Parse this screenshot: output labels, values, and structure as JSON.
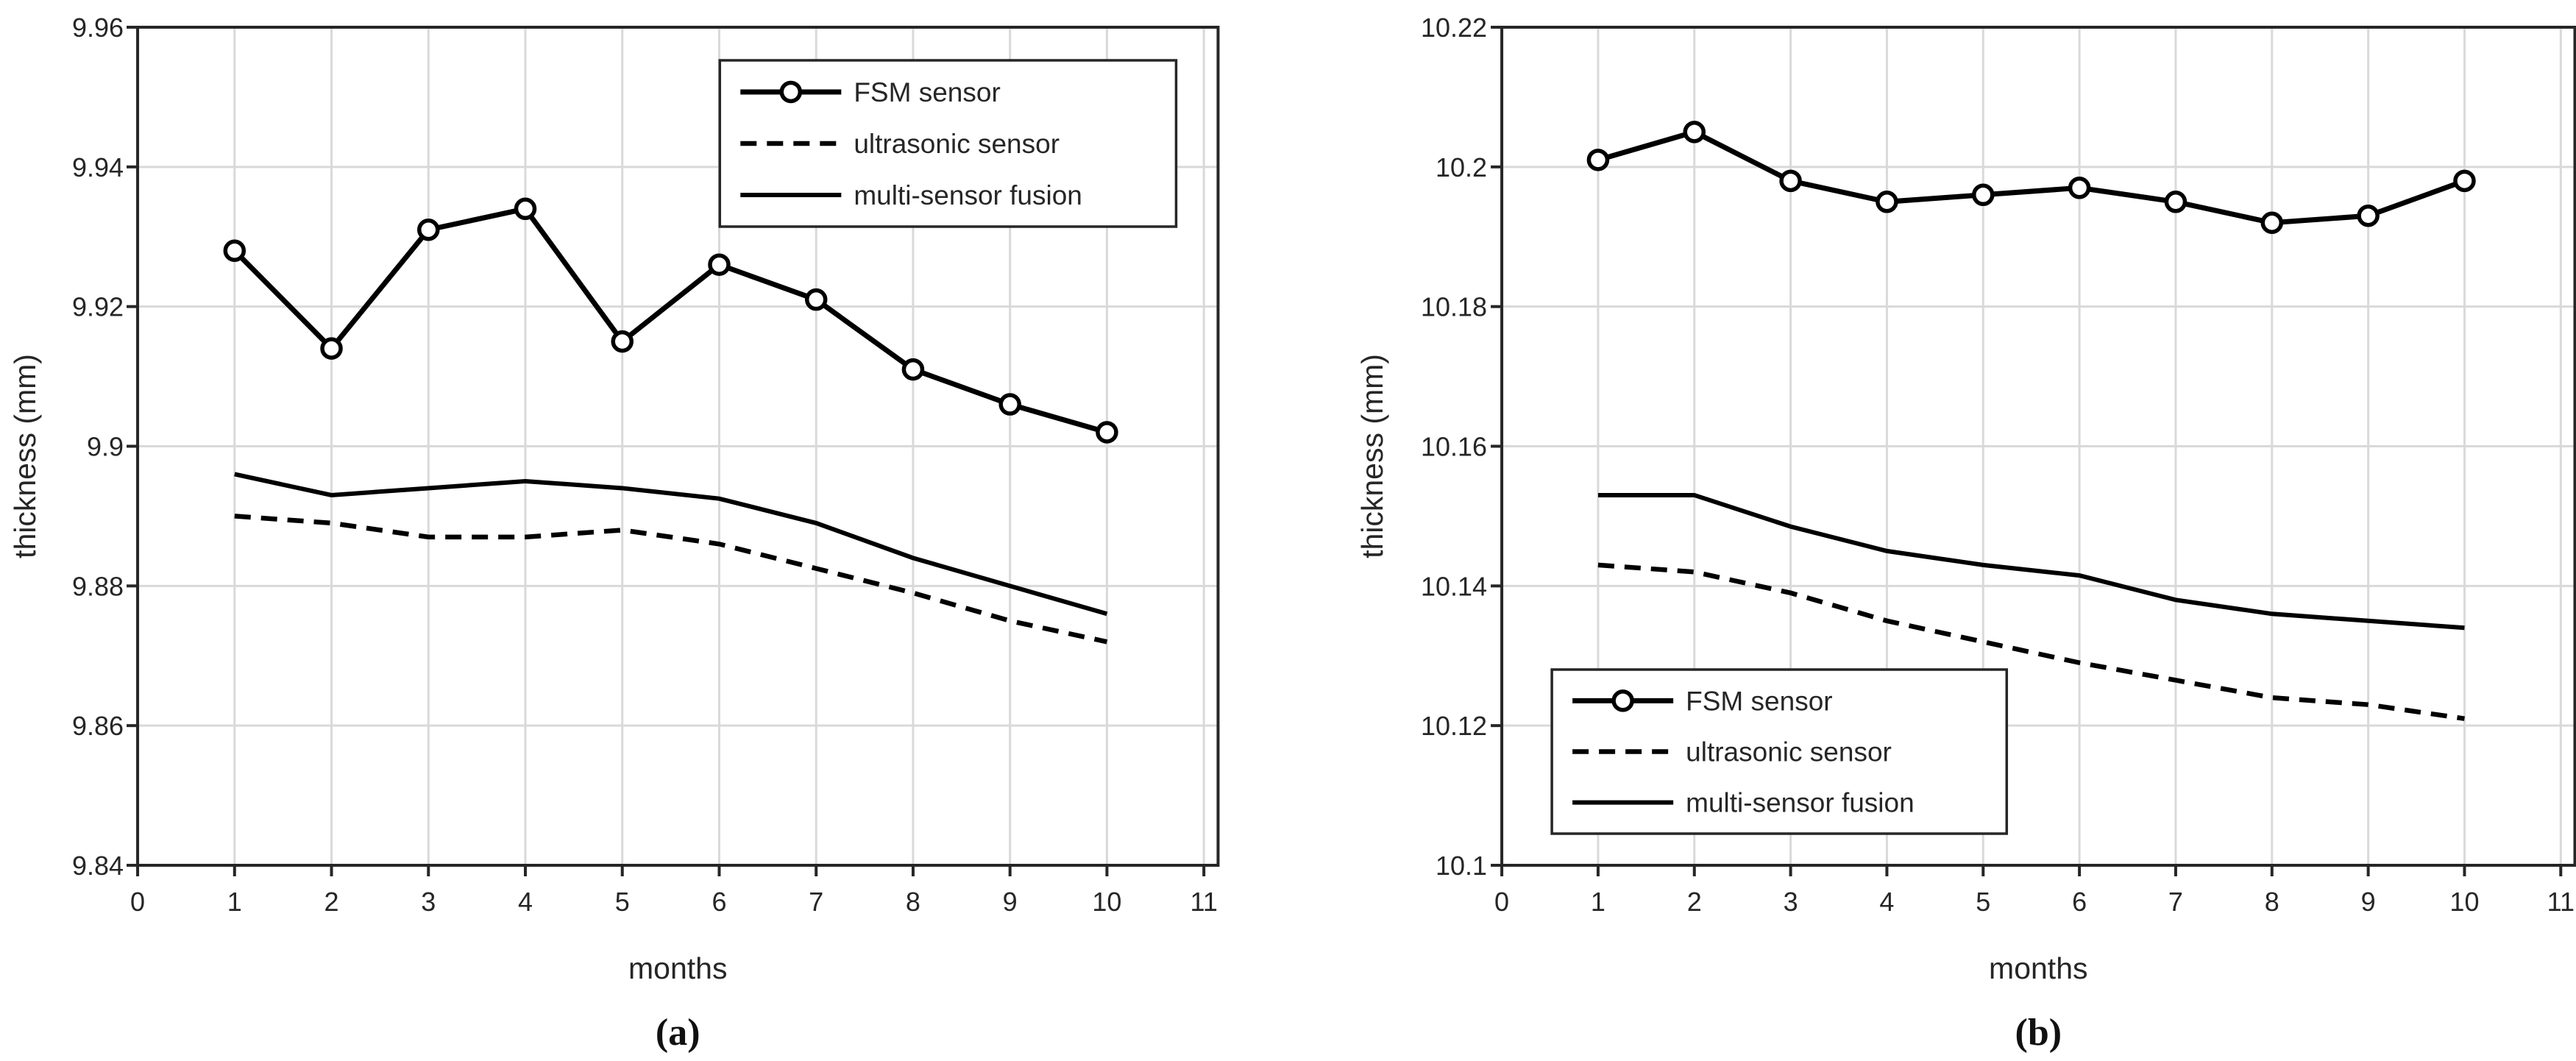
{
  "figure": {
    "background_color": "#ffffff",
    "line_color": "#000000",
    "grid_color": "#d9d9d9",
    "spine_color": "#262626",
    "text_color": "#262626"
  },
  "chart_data": [
    {
      "type": "line",
      "caption": "(a)",
      "xlabel": "months",
      "ylabel": "thickness (mm)",
      "xlim": [
        0,
        11
      ],
      "ylim": [
        9.84,
        9.96
      ],
      "grid": true,
      "legend_position": "top-right",
      "xtick_values": [
        0,
        1,
        2,
        3,
        4,
        5,
        6,
        7,
        8,
        9,
        10,
        11
      ],
      "xtick_labels": [
        "0",
        "1",
        "2",
        "3",
        "4",
        "5",
        "6",
        "7",
        "8",
        "9",
        "10",
        "11"
      ],
      "ytick_values": [
        9.84,
        9.86,
        9.88,
        9.9,
        9.92,
        9.94,
        9.96
      ],
      "ytick_labels": [
        "9.84",
        "9.86",
        "9.88",
        "9.9",
        "9.92",
        "9.94",
        "9.96"
      ],
      "x": [
        1,
        2,
        3,
        4,
        5,
        6,
        7,
        8,
        9,
        10
      ],
      "series": [
        {
          "name": "FSM sensor",
          "style": "solid-circle",
          "values": [
            9.928,
            9.914,
            9.931,
            9.934,
            9.915,
            9.926,
            9.921,
            9.911,
            9.906,
            9.902
          ]
        },
        {
          "name": "ultrasonic sensor",
          "style": "dashed",
          "values": [
            9.89,
            9.889,
            9.887,
            9.887,
            9.888,
            9.886,
            9.8825,
            9.879,
            9.875,
            9.872
          ]
        },
        {
          "name": "multi-sensor fusion",
          "style": "solid",
          "values": [
            9.896,
            9.893,
            9.894,
            9.895,
            9.894,
            9.8925,
            9.889,
            9.884,
            9.88,
            9.876
          ]
        }
      ]
    },
    {
      "type": "line",
      "caption": "(b)",
      "xlabel": "months",
      "ylabel": "thickness (mm)",
      "xlim": [
        0,
        11
      ],
      "ylim": [
        10.1,
        10.22
      ],
      "grid": true,
      "legend_position": "bottom-left",
      "xtick_values": [
        0,
        1,
        2,
        3,
        4,
        5,
        6,
        7,
        8,
        9,
        10,
        11
      ],
      "xtick_labels": [
        "0",
        "1",
        "2",
        "3",
        "4",
        "5",
        "6",
        "7",
        "8",
        "9",
        "10",
        "11"
      ],
      "ytick_values": [
        10.1,
        10.12,
        10.14,
        10.16,
        10.18,
        10.2,
        10.22
      ],
      "ytick_labels": [
        "10.1",
        "10.12",
        "10.14",
        "10.16",
        "10.18",
        "10.2",
        "10.22"
      ],
      "x": [
        1,
        2,
        3,
        4,
        5,
        6,
        7,
        8,
        9,
        10
      ],
      "series": [
        {
          "name": "FSM sensor",
          "style": "solid-circle",
          "values": [
            10.201,
            10.205,
            10.198,
            10.195,
            10.196,
            10.197,
            10.195,
            10.192,
            10.193,
            10.198
          ]
        },
        {
          "name": "ultrasonic sensor",
          "style": "dashed",
          "values": [
            10.143,
            10.142,
            10.139,
            10.135,
            10.132,
            10.129,
            10.1265,
            10.124,
            10.123,
            10.121
          ]
        },
        {
          "name": "multi-sensor fusion",
          "style": "solid",
          "values": [
            10.153,
            10.153,
            10.1485,
            10.145,
            10.143,
            10.1415,
            10.138,
            10.136,
            10.135,
            10.134
          ]
        }
      ]
    }
  ]
}
